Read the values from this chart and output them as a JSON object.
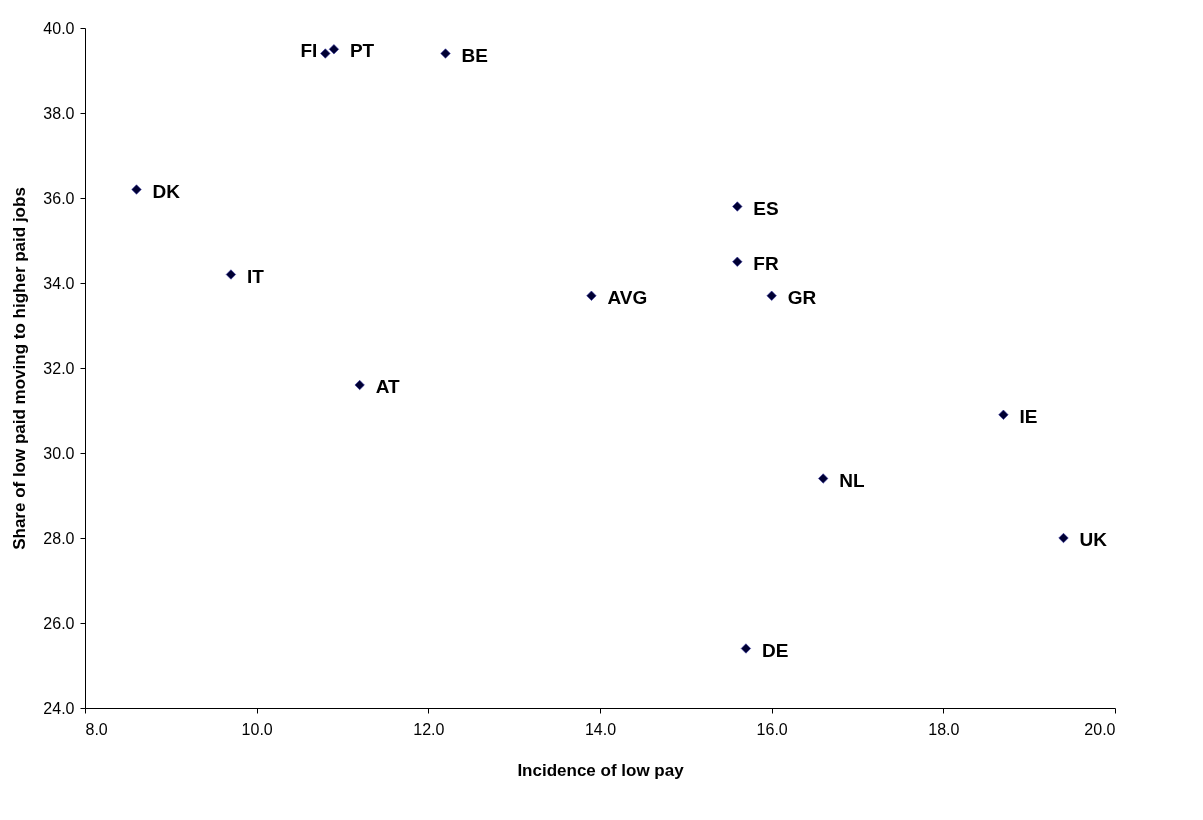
{
  "chart_data": {
    "type": "scatter",
    "xlabel": "Incidence of low pay",
    "ylabel": "Share of low paid moving to higher paid jobs",
    "series": [
      {
        "color": "#000033",
        "x": [
          10.8,
          10.9,
          12.2,
          8.6,
          9.7,
          11.2,
          13.9,
          15.6,
          15.6,
          16.0,
          18.7,
          16.6,
          19.4,
          15.7
        ],
        "values": [
          39.4,
          39.5,
          39.4,
          36.2,
          34.2,
          31.6,
          33.7,
          35.8,
          34.5,
          33.7,
          30.9,
          29.4,
          28.0,
          25.4
        ]
      }
    ],
    "annotations": [
      {
        "text": "FI",
        "x": 10.8,
        "y": 39.4
      },
      {
        "text": "PT",
        "x": 10.9,
        "y": 39.5
      },
      {
        "text": "BE",
        "x": 12.2,
        "y": 39.4
      },
      {
        "text": "DK",
        "x": 8.6,
        "y": 36.2
      },
      {
        "text": "IT",
        "x": 9.7,
        "y": 34.2
      },
      {
        "text": "AT",
        "x": 11.2,
        "y": 31.6
      },
      {
        "text": "AVG",
        "x": 13.9,
        "y": 33.7
      },
      {
        "text": "ES",
        "x": 15.6,
        "y": 35.8
      },
      {
        "text": "FR",
        "x": 15.6,
        "y": 34.5
      },
      {
        "text": "GR",
        "x": 16.0,
        "y": 33.7
      },
      {
        "text": "IE",
        "x": 18.7,
        "y": 30.9
      },
      {
        "text": "NL",
        "x": 16.6,
        "y": 29.4
      },
      {
        "text": "UK",
        "x": 19.4,
        "y": 28.0
      },
      {
        "text": "DE",
        "x": 15.7,
        "y": 25.4
      }
    ],
    "xlim": [
      8,
      20
    ],
    "xticks": [
      {
        "value": 8,
        "label": "8.0"
      },
      {
        "value": 10,
        "label": "10.0"
      },
      {
        "value": 12,
        "label": "12.0"
      },
      {
        "value": 14,
        "label": "14.0"
      },
      {
        "value": 16,
        "label": "16.0"
      },
      {
        "value": 18,
        "label": "18.0"
      },
      {
        "value": 20,
        "label": "20.0"
      }
    ],
    "ylim": [
      24,
      40
    ],
    "yticks": [
      {
        "value": 24,
        "label": "24.0"
      },
      {
        "value": 26,
        "label": "26.0"
      },
      {
        "value": 28,
        "label": "28.0"
      },
      {
        "value": 30,
        "label": "30.0"
      },
      {
        "value": 32,
        "label": "32.0"
      },
      {
        "value": 34,
        "label": "34.0"
      },
      {
        "value": 36,
        "label": "36.0"
      },
      {
        "value": 38,
        "label": "38.0"
      },
      {
        "value": 40,
        "label": "40.0"
      }
    ],
    "marker": "diamond",
    "grid": false
  }
}
